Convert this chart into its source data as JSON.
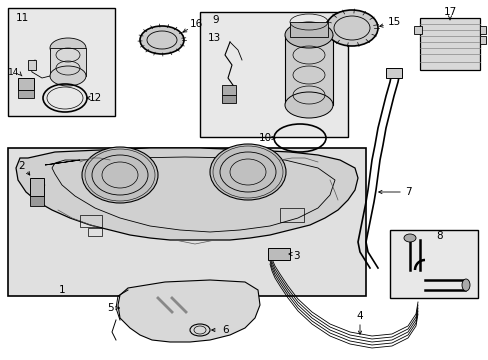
{
  "bg_color": "#ffffff",
  "box_fill": "#e8e8e8",
  "tank_fill": "#d8d8d8",
  "lw": 0.7,
  "fs": 7.5,
  "fs_sm": 6.5,
  "figw": 4.89,
  "figh": 3.6,
  "dpi": 100,
  "xlim": [
    0,
    489
  ],
  "ylim": [
    0,
    360
  ]
}
